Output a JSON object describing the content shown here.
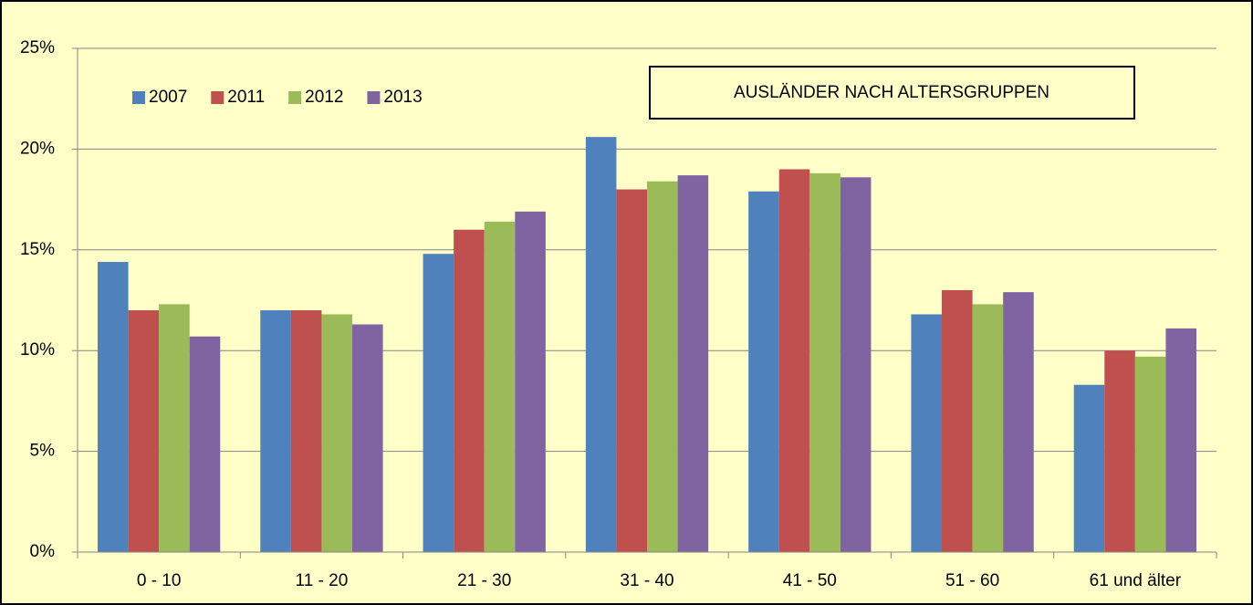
{
  "chart_data": {
    "type": "bar",
    "title": "AUSLÄNDER NACH ALTERSGRUPPEN",
    "categories": [
      "0 - 10",
      "11 - 20",
      "21 - 30",
      "31 - 40",
      "41 - 50",
      "51 - 60",
      "61 und älter"
    ],
    "series": [
      {
        "name": "2007",
        "color": "#4f81bd",
        "values": [
          14.4,
          12.0,
          14.8,
          20.6,
          17.9,
          11.8,
          8.3
        ]
      },
      {
        "name": "2011",
        "color": "#c0504d",
        "values": [
          12.0,
          12.0,
          16.0,
          18.0,
          19.0,
          13.0,
          10.0
        ]
      },
      {
        "name": "2012",
        "color": "#9bbb59",
        "values": [
          12.3,
          11.8,
          16.4,
          18.4,
          18.8,
          12.3,
          9.7
        ]
      },
      {
        "name": "2013",
        "color": "#8064a2",
        "values": [
          10.7,
          11.3,
          16.9,
          18.7,
          18.6,
          12.9,
          11.1
        ]
      }
    ],
    "ylim": [
      0,
      25
    ],
    "yticks": [
      {
        "value": 0,
        "label": "0%"
      },
      {
        "value": 5,
        "label": "5%"
      },
      {
        "value": 10,
        "label": "10%"
      },
      {
        "value": 15,
        "label": "15%"
      },
      {
        "value": 20,
        "label": "20%"
      },
      {
        "value": 25,
        "label": "25%"
      }
    ],
    "grid": true,
    "legend": "top-left"
  }
}
